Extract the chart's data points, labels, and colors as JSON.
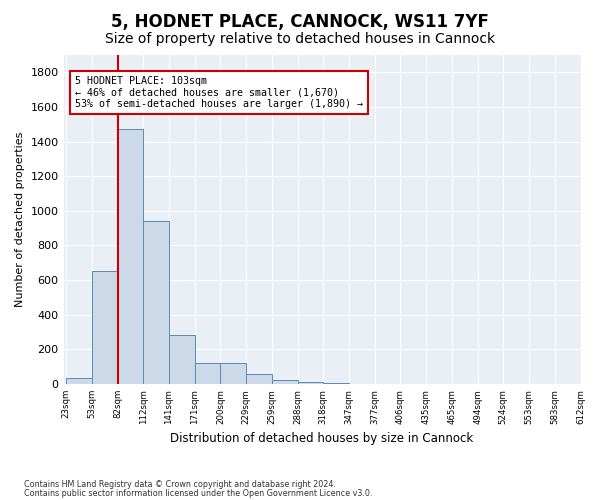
{
  "title1": "5, HODNET PLACE, CANNOCK, WS11 7YF",
  "title2": "Size of property relative to detached houses in Cannock",
  "xlabel": "Distribution of detached houses by size in Cannock",
  "ylabel": "Number of detached properties",
  "bin_labels": [
    "23sqm",
    "53sqm",
    "82sqm",
    "112sqm",
    "141sqm",
    "171sqm",
    "200sqm",
    "229sqm",
    "259sqm",
    "288sqm",
    "318sqm",
    "347sqm",
    "377sqm",
    "406sqm",
    "435sqm",
    "465sqm",
    "494sqm",
    "524sqm",
    "553sqm",
    "583sqm",
    "612sqm"
  ],
  "bar_values": [
    35,
    650,
    1470,
    940,
    280,
    120,
    120,
    60,
    20,
    10,
    5,
    2,
    2,
    1,
    0,
    0,
    0,
    0,
    0,
    0
  ],
  "bar_color": "#ccd9e8",
  "bar_edge_color": "#5b8ab5",
  "vline_x": 2.0,
  "vline_color": "#cc0000",
  "annotation_line1": "5 HODNET PLACE: 103sqm",
  "annotation_line2": "← 46% of detached houses are smaller (1,670)",
  "annotation_line3": "53% of semi-detached houses are larger (1,890) →",
  "annotation_box_color": "#ffffff",
  "annotation_box_edge": "#cc0000",
  "ylim": [
    0,
    1900
  ],
  "yticks": [
    0,
    200,
    400,
    600,
    800,
    1000,
    1200,
    1400,
    1600,
    1800
  ],
  "footnote1": "Contains HM Land Registry data © Crown copyright and database right 2024.",
  "footnote2": "Contains public sector information licensed under the Open Government Licence v3.0.",
  "bg_color": "#ffffff",
  "plot_bg_color": "#eaeff6",
  "grid_color": "#ffffff",
  "title1_fontsize": 12,
  "title2_fontsize": 10
}
